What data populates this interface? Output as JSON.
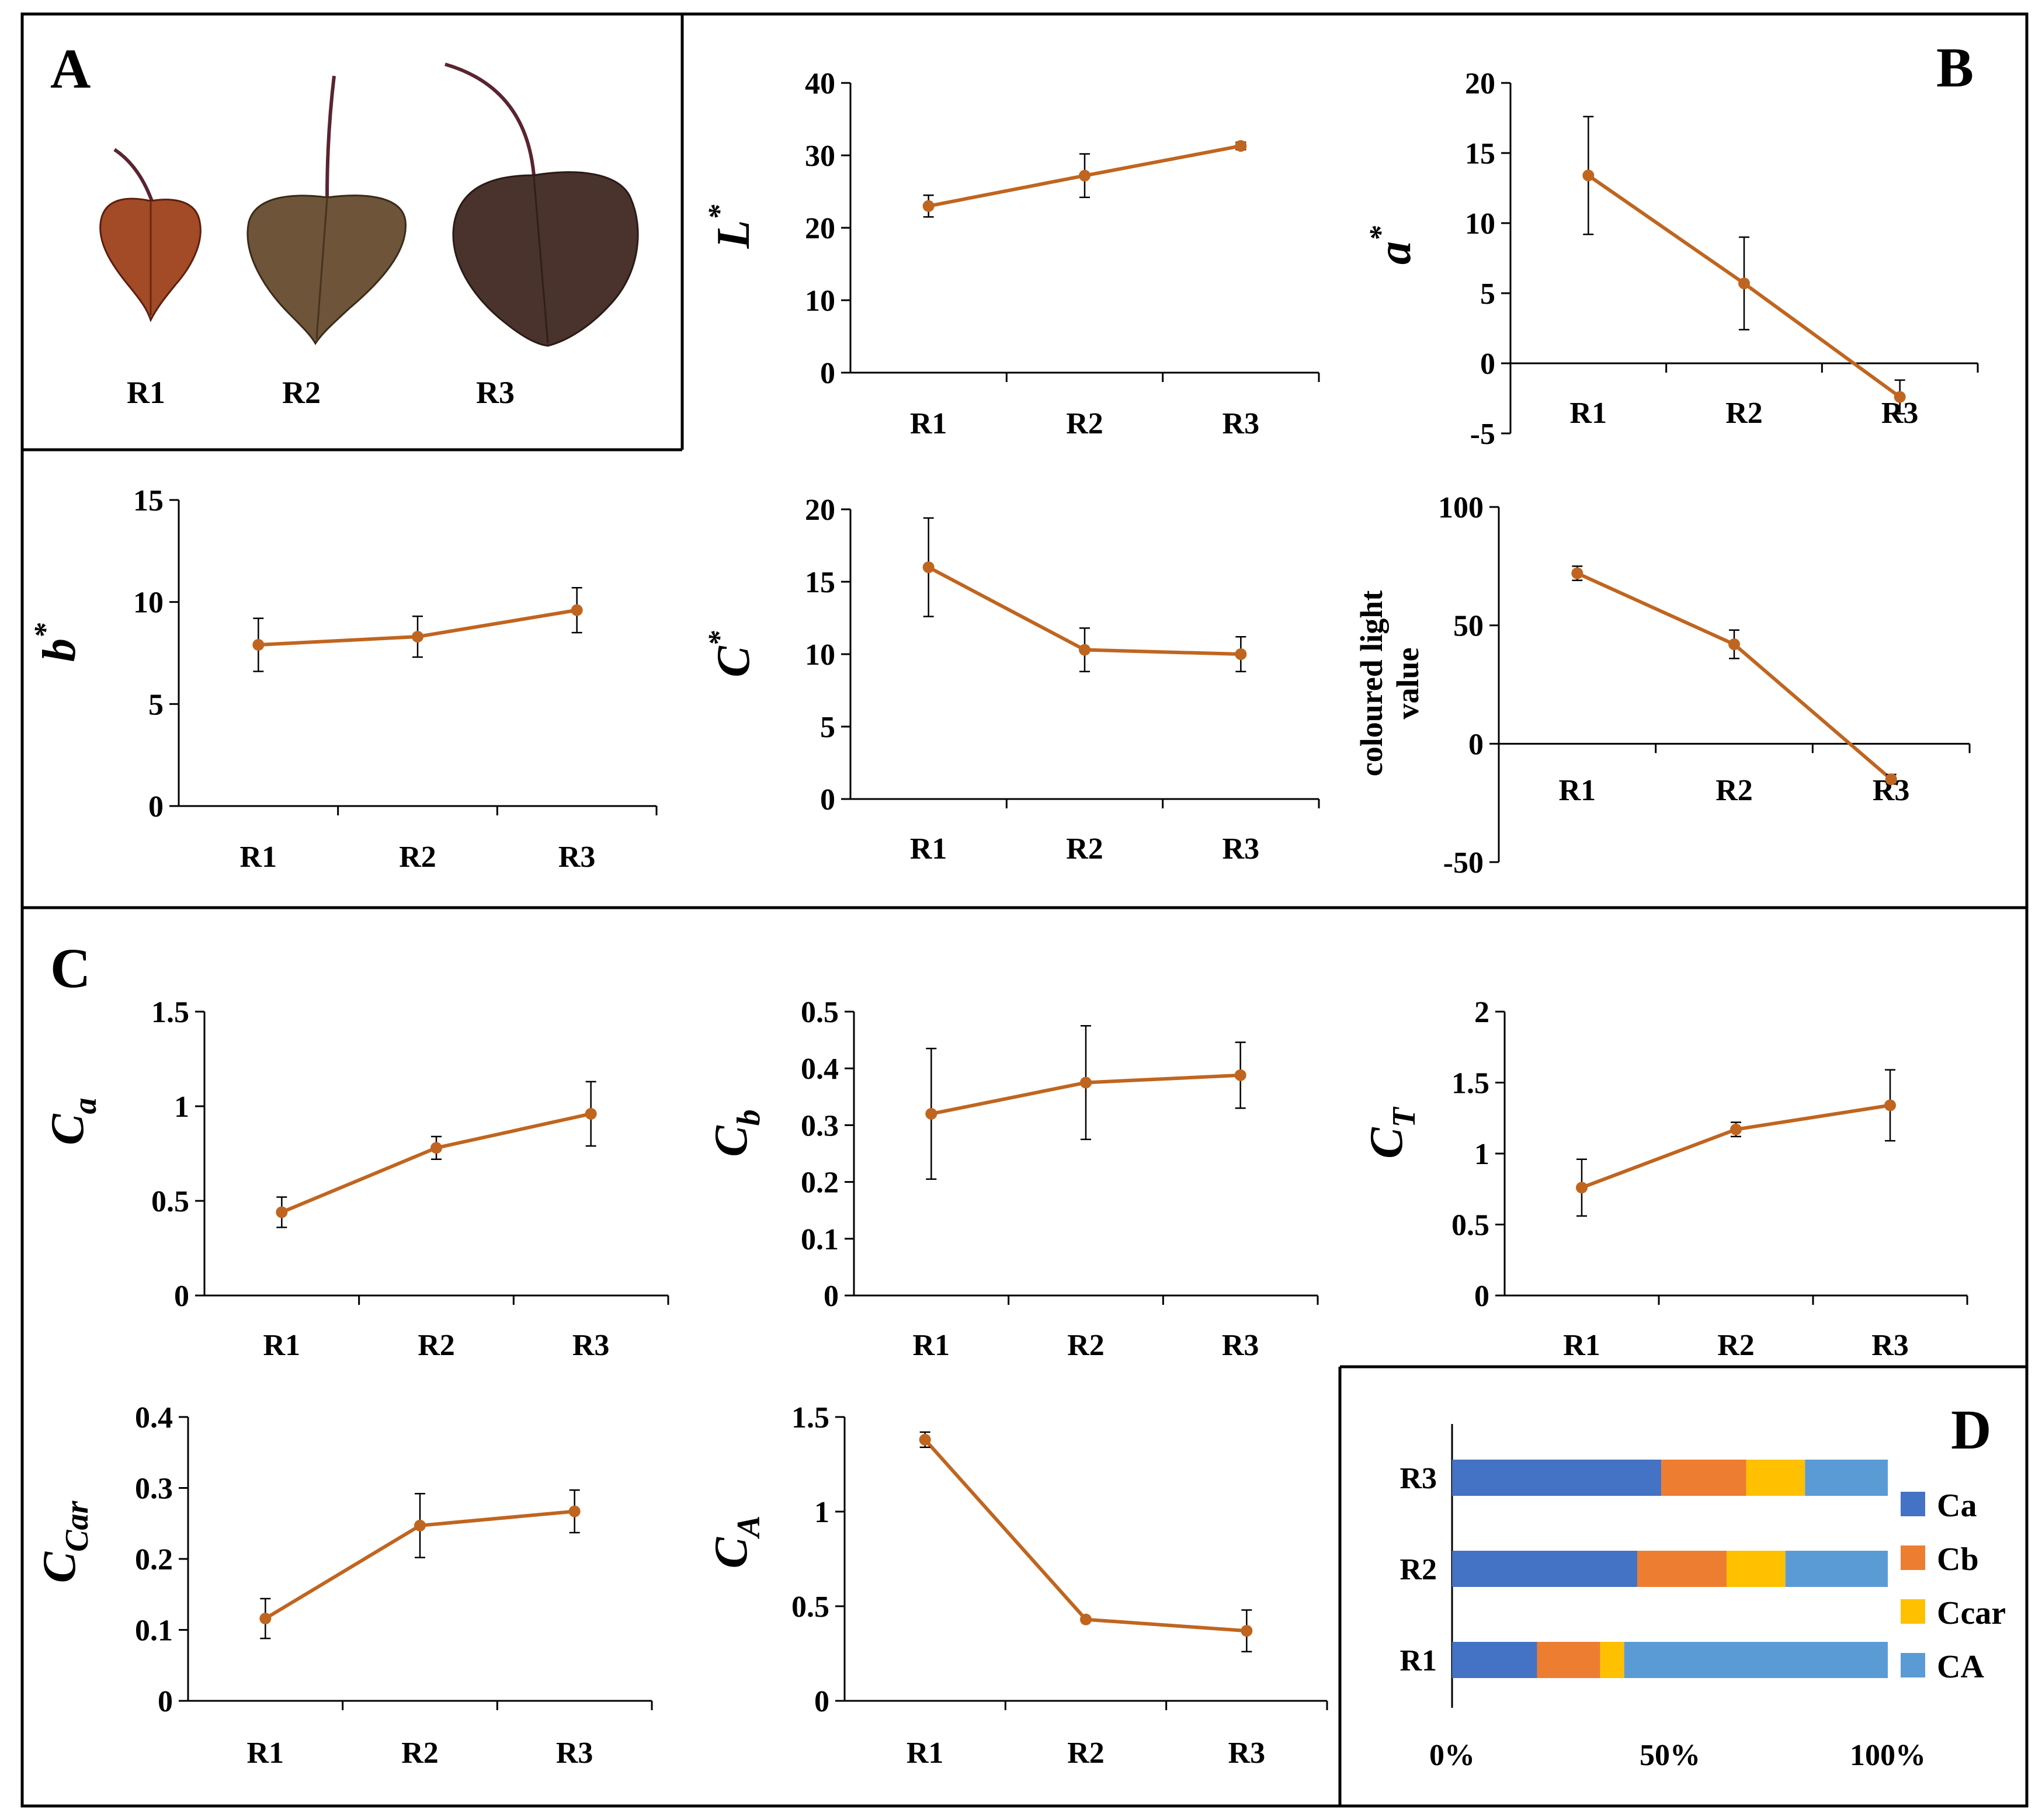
{
  "panels": {
    "A": "A",
    "B": "B",
    "C": "C",
    "D": "D"
  },
  "leaves": {
    "labels": [
      "R1",
      "R2",
      "R3"
    ],
    "colors": {
      "R1": "#a34a26",
      "R2": "#6e5438",
      "R3": "#4a332c",
      "petiole": "#5a2430"
    }
  },
  "style": {
    "line_color": "#c0651f",
    "axis_color": "#000000"
  },
  "chart_data": [
    {
      "id": "L",
      "type": "line",
      "ylabel": {
        "base": "L",
        "sup": "*",
        "sub": ""
      },
      "categories": [
        "R1",
        "R2",
        "R3"
      ],
      "values": [
        23,
        27.2,
        31.3
      ],
      "errors": [
        1.5,
        3.0,
        0.5
      ],
      "ylim": [
        0,
        40
      ],
      "yticks": [
        0,
        10,
        20,
        30,
        40
      ],
      "ytick_labels": [
        "0",
        "10",
        "20",
        "30",
        "40"
      ]
    },
    {
      "id": "a",
      "type": "line",
      "ylabel": {
        "base": "a",
        "sup": "*",
        "sub": ""
      },
      "categories": [
        "R1",
        "R2",
        "R3"
      ],
      "values": [
        13.4,
        5.7,
        -2.4
      ],
      "errors": [
        4.2,
        3.3,
        1.2
      ],
      "ylim": [
        -5,
        20
      ],
      "yticks": [
        -5,
        0,
        5,
        10,
        15,
        20
      ],
      "ytick_labels": [
        "-5",
        "0",
        "5",
        "10",
        "15",
        "20"
      ]
    },
    {
      "id": "b",
      "type": "line",
      "ylabel": {
        "base": "b",
        "sup": "*",
        "sub": ""
      },
      "categories": [
        "R1",
        "R2",
        "R3"
      ],
      "values": [
        7.9,
        8.3,
        9.6
      ],
      "errors": [
        1.3,
        1.0,
        1.1
      ],
      "ylim": [
        0,
        15
      ],
      "yticks": [
        0,
        5,
        10,
        15
      ],
      "ytick_labels": [
        "0",
        "5",
        "10",
        "15"
      ]
    },
    {
      "id": "C",
      "type": "line",
      "ylabel": {
        "base": "C",
        "sup": "*",
        "sub": ""
      },
      "categories": [
        "R1",
        "R2",
        "R3"
      ],
      "values": [
        16.0,
        10.3,
        10.0
      ],
      "errors": [
        3.4,
        1.5,
        1.2
      ],
      "ylim": [
        0,
        20
      ],
      "yticks": [
        0,
        5,
        10,
        15,
        20
      ],
      "ytick_labels": [
        "0",
        "5",
        "10",
        "15",
        "20"
      ]
    },
    {
      "id": "clv",
      "type": "line",
      "ylabel": {
        "lines": [
          "coloured light",
          "value"
        ]
      },
      "categories": [
        "R1",
        "R2",
        "R3"
      ],
      "values": [
        72,
        42,
        -15
      ],
      "errors": [
        3,
        6,
        2
      ],
      "ylim": [
        -50,
        100
      ],
      "yticks": [
        -50,
        0,
        50,
        100
      ],
      "ytick_labels": [
        "-50",
        "0",
        "50",
        "100"
      ]
    },
    {
      "id": "Ca",
      "type": "line",
      "ylabel": {
        "base": "C",
        "sup": "",
        "sub": "a"
      },
      "categories": [
        "R1",
        "R2",
        "R3"
      ],
      "values": [
        0.44,
        0.78,
        0.96
      ],
      "errors": [
        0.08,
        0.06,
        0.17
      ],
      "ylim": [
        0,
        1.5
      ],
      "yticks": [
        0,
        0.5,
        1,
        1.5
      ],
      "ytick_labels": [
        "0",
        "0.5",
        "1",
        "1.5"
      ]
    },
    {
      "id": "Cb",
      "type": "line",
      "ylabel": {
        "base": "C",
        "sup": "",
        "sub": "b"
      },
      "categories": [
        "R1",
        "R2",
        "R3"
      ],
      "values": [
        0.32,
        0.375,
        0.388
      ],
      "errors": [
        0.115,
        0.1,
        0.058
      ],
      "ylim": [
        0,
        0.5
      ],
      "yticks": [
        0,
        0.1,
        0.2,
        0.3,
        0.4,
        0.5
      ],
      "ytick_labels": [
        "0",
        "0.1",
        "0.2",
        "0.3",
        "0.4",
        "0.5"
      ]
    },
    {
      "id": "CT",
      "type": "line",
      "ylabel": {
        "base": "C",
        "sup": "",
        "sub": "T"
      },
      "categories": [
        "R1",
        "R2",
        "R3"
      ],
      "values": [
        0.76,
        1.17,
        1.34
      ],
      "errors": [
        0.2,
        0.05,
        0.25
      ],
      "ylim": [
        0,
        2
      ],
      "yticks": [
        0,
        0.5,
        1,
        1.5,
        2
      ],
      "ytick_labels": [
        "0",
        "0.5",
        "1",
        "1.5",
        "2"
      ]
    },
    {
      "id": "CCar",
      "type": "line",
      "ylabel": {
        "base": "C",
        "sup": "",
        "sub": "Car"
      },
      "categories": [
        "R1",
        "R2",
        "R3"
      ],
      "values": [
        0.116,
        0.247,
        0.267
      ],
      "errors": [
        0.028,
        0.045,
        0.03
      ],
      "ylim": [
        0,
        0.4
      ],
      "yticks": [
        0,
        0.1,
        0.2,
        0.3,
        0.4
      ],
      "ytick_labels": [
        "0",
        "0.1",
        "0.2",
        "0.3",
        "0.4"
      ]
    },
    {
      "id": "CA",
      "type": "line",
      "ylabel": {
        "base": "C",
        "sup": "",
        "sub": "A"
      },
      "categories": [
        "R1",
        "R2",
        "R3"
      ],
      "values": [
        1.38,
        0.43,
        0.37
      ],
      "errors": [
        0.04,
        0.01,
        0.11
      ],
      "ylim": [
        0,
        1.5
      ],
      "yticks": [
        0,
        0.5,
        1,
        1.5
      ],
      "ytick_labels": [
        "0",
        "0.5",
        "1",
        "1.5"
      ]
    },
    {
      "id": "composition",
      "type": "bar",
      "stacked": "percent",
      "orientation": "horizontal",
      "categories": [
        "R1",
        "R2",
        "R3"
      ],
      "series": [
        {
          "name": "Ca",
          "color": "#4472c4",
          "values": [
            19.5,
            42.5,
            48
          ]
        },
        {
          "name": "Cb",
          "color": "#ed7d31",
          "values": [
            14.5,
            20.5,
            19.5
          ]
        },
        {
          "name": "Ccar",
          "color": "#ffc000",
          "values": [
            5.5,
            13.5,
            13.5
          ]
        },
        {
          "name": "CA",
          "color": "#5b9bd5",
          "values": [
            60.5,
            23.5,
            19
          ]
        }
      ],
      "xticks": [
        0,
        50,
        100
      ],
      "xtick_labels": [
        "0%",
        "50%",
        "100%"
      ],
      "legend_position": "right"
    }
  ]
}
